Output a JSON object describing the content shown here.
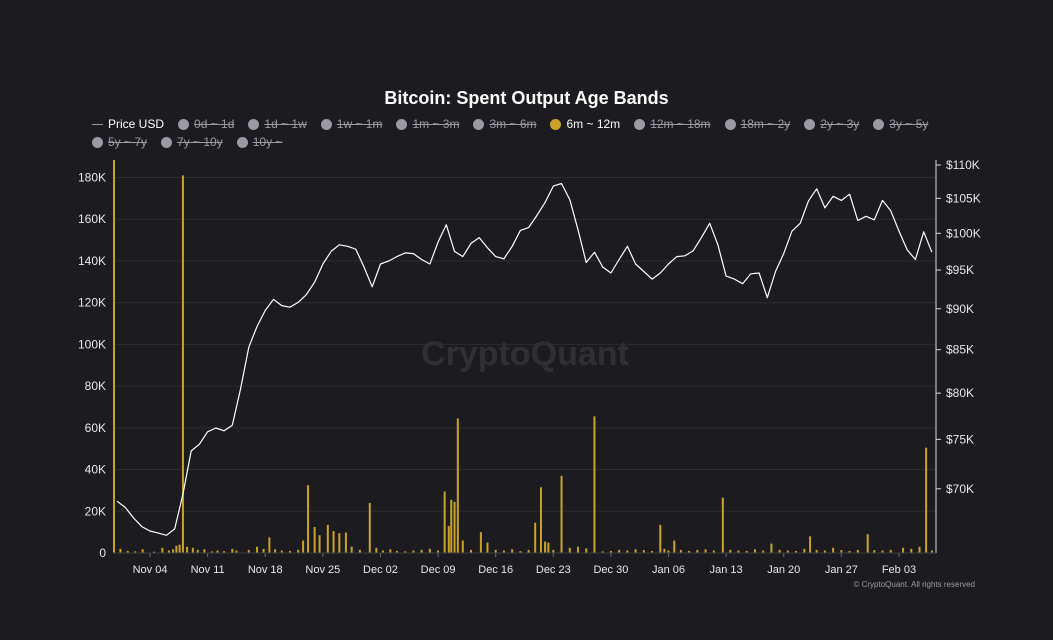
{
  "chart_data": {
    "type": "line",
    "title": "Bitcoin: Spent Output Age Bands",
    "watermark": "CryptoQuant",
    "credit": "© CryptoQuant. All rights reserved",
    "legend": [
      {
        "label": "Price USD",
        "icon": "line",
        "active": true
      },
      {
        "label": "0d ~ 1d",
        "icon": "dot",
        "active": false
      },
      {
        "label": "1d ~ 1w",
        "icon": "dot",
        "active": false
      },
      {
        "label": "1w ~ 1m",
        "icon": "dot",
        "active": false
      },
      {
        "label": "1m ~ 3m",
        "icon": "dot",
        "active": false
      },
      {
        "label": "3m ~ 6m",
        "icon": "dot",
        "active": false
      },
      {
        "label": "6m ~ 12m",
        "icon": "dot",
        "active": true,
        "color": "#c9a227"
      },
      {
        "label": "12m ~ 18m",
        "icon": "dot",
        "active": false
      },
      {
        "label": "18m ~ 2y",
        "icon": "dot",
        "active": false
      },
      {
        "label": "2y ~ 3y",
        "icon": "dot",
        "active": false
      },
      {
        "label": "3y ~ 5y",
        "icon": "dot",
        "active": false
      },
      {
        "label": "5y ~ 7y",
        "icon": "dot",
        "active": false
      },
      {
        "label": "7y ~ 10y",
        "icon": "dot",
        "active": false
      },
      {
        "label": "10y ~",
        "icon": "dot",
        "active": false
      }
    ],
    "x_ticks": [
      "Nov 04",
      "Nov 11",
      "Nov 18",
      "Nov 25",
      "Dec 02",
      "Dec 09",
      "Dec 16",
      "Dec 23",
      "Dec 30",
      "Jan 06",
      "Jan 13",
      "Jan 20",
      "Jan 27",
      "Feb 03"
    ],
    "x_range_days": [
      -4.5,
      95.5
    ],
    "y_left": {
      "ticks": [
        "0",
        "20K",
        "40K",
        "60K",
        "80K",
        "100K",
        "120K",
        "140K",
        "160K",
        "180K"
      ],
      "range": [
        0,
        186000
      ]
    },
    "y_right": {
      "ticks": [
        "$70K",
        "$75K",
        "$80K",
        "$85K",
        "$90K",
        "$95K",
        "$100K",
        "$105K",
        "$110K"
      ],
      "range": [
        64000,
        110000
      ],
      "scale": "log"
    },
    "colors": {
      "price": "#ffffff",
      "bars": "#c9a227",
      "background": "#1c1c20",
      "grid": "#2c2c31",
      "text": "#e8e8ea",
      "muted": "#9a9aa2"
    },
    "series": [
      {
        "name": "Price USD",
        "axis": "right",
        "points": [
          [
            -4,
            68800
          ],
          [
            -3,
            68200
          ],
          [
            -2,
            67200
          ],
          [
            -1,
            66400
          ],
          [
            0,
            66000
          ],
          [
            1,
            65800
          ],
          [
            2,
            65600
          ],
          [
            3,
            66200
          ],
          [
            4,
            69500
          ],
          [
            5,
            73800
          ],
          [
            6,
            74500
          ],
          [
            7,
            75800
          ],
          [
            8,
            76200
          ],
          [
            9,
            75900
          ],
          [
            10,
            76500
          ],
          [
            11,
            80500
          ],
          [
            12,
            85300
          ],
          [
            13,
            87800
          ],
          [
            14,
            89800
          ],
          [
            15,
            91200
          ],
          [
            16,
            90400
          ],
          [
            17,
            90200
          ],
          [
            18,
            90800
          ],
          [
            19,
            91800
          ],
          [
            20,
            93400
          ],
          [
            21,
            95800
          ],
          [
            22,
            97500
          ],
          [
            23,
            98400
          ],
          [
            24,
            98200
          ],
          [
            25,
            97800
          ],
          [
            26,
            95400
          ],
          [
            27,
            92800
          ],
          [
            28,
            95800
          ],
          [
            29,
            96200
          ],
          [
            30,
            96800
          ],
          [
            31,
            97300
          ],
          [
            32,
            97200
          ],
          [
            33,
            96400
          ],
          [
            34,
            95800
          ],
          [
            35,
            98800
          ],
          [
            36,
            101200
          ],
          [
            37,
            97500
          ],
          [
            38,
            96800
          ],
          [
            39,
            98600
          ],
          [
            40,
            99400
          ],
          [
            41,
            98000
          ],
          [
            42,
            96800
          ],
          [
            43,
            96500
          ],
          [
            44,
            98200
          ],
          [
            45,
            100400
          ],
          [
            46,
            100800
          ],
          [
            47,
            102500
          ],
          [
            48,
            104400
          ],
          [
            49,
            106800
          ],
          [
            50,
            107200
          ],
          [
            51,
            104800
          ],
          [
            52,
            100500
          ],
          [
            53,
            96000
          ],
          [
            54,
            97400
          ],
          [
            55,
            95400
          ],
          [
            56,
            94600
          ],
          [
            57,
            96400
          ],
          [
            58,
            98200
          ],
          [
            59,
            95800
          ],
          [
            60,
            94800
          ],
          [
            61,
            93800
          ],
          [
            62,
            94600
          ],
          [
            63,
            95800
          ],
          [
            64,
            96800
          ],
          [
            65,
            96900
          ],
          [
            66,
            97600
          ],
          [
            67,
            99400
          ],
          [
            68,
            101400
          ],
          [
            69,
            98400
          ],
          [
            70,
            94200
          ],
          [
            71,
            93800
          ],
          [
            72,
            93200
          ],
          [
            73,
            94500
          ],
          [
            74,
            94600
          ],
          [
            75,
            91400
          ],
          [
            76,
            94800
          ],
          [
            77,
            97200
          ],
          [
            78,
            100300
          ],
          [
            79,
            101400
          ],
          [
            80,
            104600
          ],
          [
            81,
            106400
          ],
          [
            82,
            103600
          ],
          [
            83,
            105300
          ],
          [
            84,
            104700
          ],
          [
            85,
            105600
          ],
          [
            86,
            101800
          ],
          [
            87,
            102400
          ],
          [
            88,
            101900
          ],
          [
            89,
            104700
          ],
          [
            90,
            103200
          ],
          [
            91,
            100300
          ],
          [
            92,
            97700
          ],
          [
            93,
            96400
          ],
          [
            94,
            100200
          ],
          [
            95,
            97400
          ]
        ]
      },
      {
        "name": "6m ~ 12m",
        "axis": "left",
        "bars": [
          [
            -3.6,
            2000
          ],
          [
            -2.7,
            1000
          ],
          [
            -1.8,
            800
          ],
          [
            -0.9,
            1800
          ],
          [
            0.5,
            600
          ],
          [
            1.5,
            2500
          ],
          [
            2.3,
            1200
          ],
          [
            2.8,
            1800
          ],
          [
            3.2,
            3500
          ],
          [
            3.6,
            4000
          ],
          [
            4,
            181000
          ],
          [
            4.5,
            3000
          ],
          [
            5.2,
            2500
          ],
          [
            5.8,
            1500
          ],
          [
            6.6,
            1800
          ],
          [
            7.5,
            800
          ],
          [
            8.2,
            1200
          ],
          [
            9,
            900
          ],
          [
            10,
            2000
          ],
          [
            10.5,
            1200
          ],
          [
            12,
            1500
          ],
          [
            13,
            3000
          ],
          [
            13.8,
            2000
          ],
          [
            14.5,
            7500
          ],
          [
            15.2,
            1800
          ],
          [
            16,
            1200
          ],
          [
            17,
            1000
          ],
          [
            18,
            1500
          ],
          [
            18.6,
            6000
          ],
          [
            19.2,
            32500
          ],
          [
            20,
            12500
          ],
          [
            20.6,
            8500
          ],
          [
            21.6,
            13500
          ],
          [
            22.3,
            10500
          ],
          [
            23,
            9500
          ],
          [
            23.8,
            9800
          ],
          [
            24.5,
            3000
          ],
          [
            25.5,
            1500
          ],
          [
            26.7,
            24000
          ],
          [
            27.5,
            2500
          ],
          [
            28.3,
            1200
          ],
          [
            29.2,
            1800
          ],
          [
            30,
            1000
          ],
          [
            31,
            800
          ],
          [
            32,
            1200
          ],
          [
            33,
            1500
          ],
          [
            34,
            2000
          ],
          [
            35,
            1200
          ],
          [
            35.8,
            29500
          ],
          [
            36.3,
            13000
          ],
          [
            36.6,
            25500
          ],
          [
            37,
            24500
          ],
          [
            37.4,
            64500
          ],
          [
            38,
            6000
          ],
          [
            39,
            1500
          ],
          [
            40.2,
            10000
          ],
          [
            41,
            5000
          ],
          [
            42,
            1500
          ],
          [
            43,
            1200
          ],
          [
            44,
            1800
          ],
          [
            45,
            900
          ],
          [
            46,
            1500
          ],
          [
            46.8,
            14500
          ],
          [
            47.5,
            31500
          ],
          [
            48,
            5500
          ],
          [
            48.4,
            5000
          ],
          [
            49,
            1500
          ],
          [
            50,
            37000
          ],
          [
            51,
            2500
          ],
          [
            52,
            3000
          ],
          [
            53,
            2200
          ],
          [
            54,
            65500
          ],
          [
            55,
            800
          ],
          [
            56,
            1000
          ],
          [
            57,
            1500
          ],
          [
            58,
            1200
          ],
          [
            59,
            1800
          ],
          [
            60,
            1400
          ],
          [
            61,
            1000
          ],
          [
            62,
            13500
          ],
          [
            62.5,
            2000
          ],
          [
            63,
            1200
          ],
          [
            63.7,
            6000
          ],
          [
            64.5,
            1500
          ],
          [
            65.5,
            1000
          ],
          [
            66.5,
            1500
          ],
          [
            67.5,
            1800
          ],
          [
            68.5,
            1200
          ],
          [
            69.6,
            26500
          ],
          [
            70.5,
            1500
          ],
          [
            71.5,
            1200
          ],
          [
            72.5,
            1000
          ],
          [
            73.5,
            1800
          ],
          [
            74.5,
            1200
          ],
          [
            75.5,
            4500
          ],
          [
            76.5,
            1500
          ],
          [
            77.5,
            1200
          ],
          [
            78.5,
            1000
          ],
          [
            79.5,
            2000
          ],
          [
            80.2,
            8000
          ],
          [
            81,
            1500
          ],
          [
            82,
            1200
          ],
          [
            83,
            2500
          ],
          [
            84,
            1400
          ],
          [
            85,
            1000
          ],
          [
            86,
            1500
          ],
          [
            87.2,
            9000
          ],
          [
            88,
            1400
          ],
          [
            89,
            1200
          ],
          [
            90,
            1500
          ],
          [
            91.5,
            2500
          ],
          [
            92.5,
            2000
          ],
          [
            93.5,
            3000
          ],
          [
            94.3,
            50500
          ],
          [
            95,
            1200
          ]
        ]
      }
    ]
  }
}
